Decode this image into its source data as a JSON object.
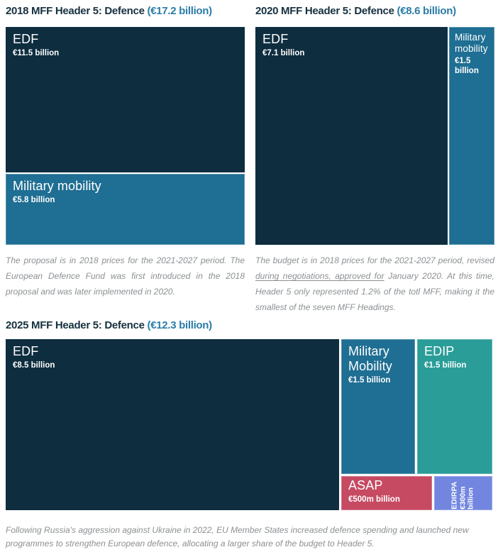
{
  "colors": {
    "background": "#ffffff",
    "title_text": "#16303f",
    "title_accent": "#2b7ca7",
    "footnote_text": "#8c9093",
    "edf_dark_navy": "#0e2d3f",
    "military_mobility_blue": "#1f6e93",
    "edip_teal": "#2a9d98",
    "asap_red": "#c64a62",
    "edirpa_periwinkle": "#7286e0",
    "cell_text": "#ffffff"
  },
  "charts": [
    {
      "title": "2018 MFF Header 5: Defence",
      "total": "(€17.2 billion)",
      "cells": [
        {
          "label": "EDF",
          "value": "€11.5 billion"
        },
        {
          "label": "Military mobility",
          "value": "€5.8 billion"
        }
      ],
      "footnote": "The proposal is in 2018 prices for the 2021-2027 period. The European Defence Fund was first introduced in the 2018 proposal and was later implemented in 2020."
    },
    {
      "title": "2020 MFF Header 5: Defence",
      "total": "(€8.6 billion)",
      "cells": [
        {
          "label": "EDF",
          "value": "€7.1 billion"
        },
        {
          "label": "Military mobility",
          "value": "€1.5 billion"
        }
      ],
      "footnote_pre": "The budget is in 2018 prices for the 2021-2027 period, revised ",
      "footnote_underlined": "during negotiations, approved for",
      "footnote_post": " January 2020. At this time, Header 5 only represented 1.2% of the totl MFF, making it the smallest of the seven MFF Headings."
    },
    {
      "title": "2025 MFF Header 5: Defence",
      "total": "(€12.3 billion)",
      "cells": [
        {
          "label": "EDF",
          "value": "€8.5 billion"
        },
        {
          "label": "Military Mobility",
          "value": "€1.5 billion"
        },
        {
          "label": "EDIP",
          "value": "€1.5 billion"
        },
        {
          "label": "ASAP",
          "value": "€500m billion"
        },
        {
          "label": "EDIRPA",
          "value": "€300m billion"
        }
      ],
      "footnote": "Following Russia's aggression against Ukraine in 2022, EU Member States increased defence spending and launched new programmes to strengthen European defence, allocating a larger share of the budget to Header 5."
    }
  ],
  "chart_data": [
    {
      "type": "treemap",
      "title": "2018 MFF Header 5: Defence",
      "total_label": "€17.2 billion",
      "total_eur_billion": 17.2,
      "items": [
        {
          "name": "EDF",
          "value_eur_billion": 11.5,
          "color": "#0e2d3f"
        },
        {
          "name": "Military mobility",
          "value_eur_billion": 5.8,
          "color": "#1f6e93"
        }
      ]
    },
    {
      "type": "treemap",
      "title": "2020 MFF Header 5: Defence",
      "total_label": "€8.6 billion",
      "total_eur_billion": 8.6,
      "items": [
        {
          "name": "EDF",
          "value_eur_billion": 7.1,
          "color": "#0e2d3f"
        },
        {
          "name": "Military mobility",
          "value_eur_billion": 1.5,
          "color": "#1f6e93"
        }
      ]
    },
    {
      "type": "treemap",
      "title": "2025 MFF Header 5: Defence",
      "total_label": "€12.3 billion",
      "total_eur_billion": 12.3,
      "items": [
        {
          "name": "EDF",
          "value_eur_billion": 8.5,
          "color": "#0e2d3f"
        },
        {
          "name": "Military Mobility",
          "value_eur_billion": 1.5,
          "color": "#1f6e93"
        },
        {
          "name": "EDIP",
          "value_eur_billion": 1.5,
          "color": "#2a9d98"
        },
        {
          "name": "ASAP",
          "value_label": "€500m billion",
          "color": "#c64a62"
        },
        {
          "name": "EDIRPA",
          "value_label": "€300m billion",
          "color": "#7286e0"
        }
      ]
    }
  ]
}
